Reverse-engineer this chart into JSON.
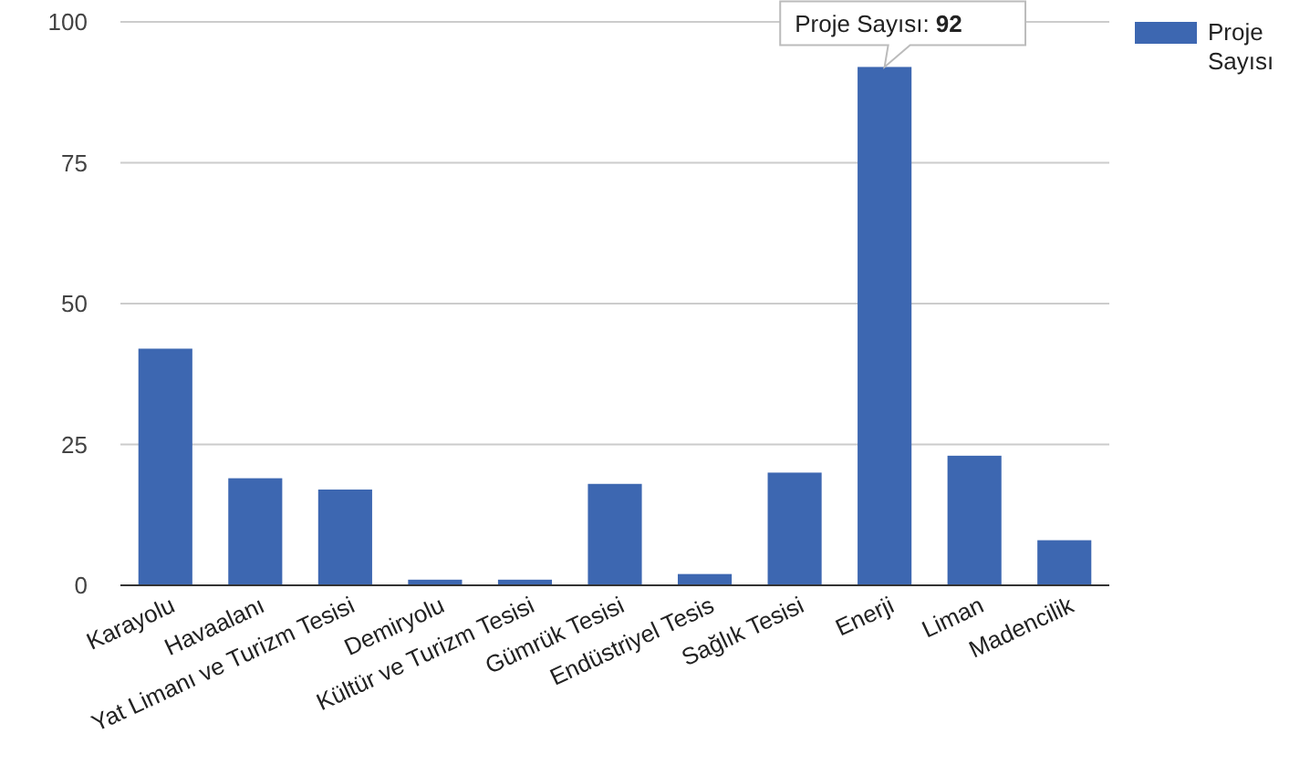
{
  "chart_data": {
    "type": "bar",
    "categories": [
      "Karayolu",
      "Havaalanı",
      "Yat Limanı ve Turizm Tesisi",
      "Demiryolu",
      "Kültür ve Turizm Tesisi",
      "Gümrük Tesisi",
      "Endüstriyel Tesis",
      "Sağlık Tesisi",
      "Enerji",
      "Liman",
      "Madencilik"
    ],
    "series": [
      {
        "name": "Proje Sayısı",
        "color": "#3d67b1",
        "values": [
          42,
          19,
          17,
          1,
          1,
          18,
          2,
          20,
          92,
          23,
          8
        ]
      }
    ],
    "ylim": [
      0,
      100
    ],
    "yticks": [
      0,
      25,
      50,
      75,
      100
    ],
    "grid": "y",
    "legend": "top right",
    "annotations": [
      {
        "text": "Proje Sayısı: 92",
        "x": "Enerji",
        "y": 92
      }
    ]
  }
}
